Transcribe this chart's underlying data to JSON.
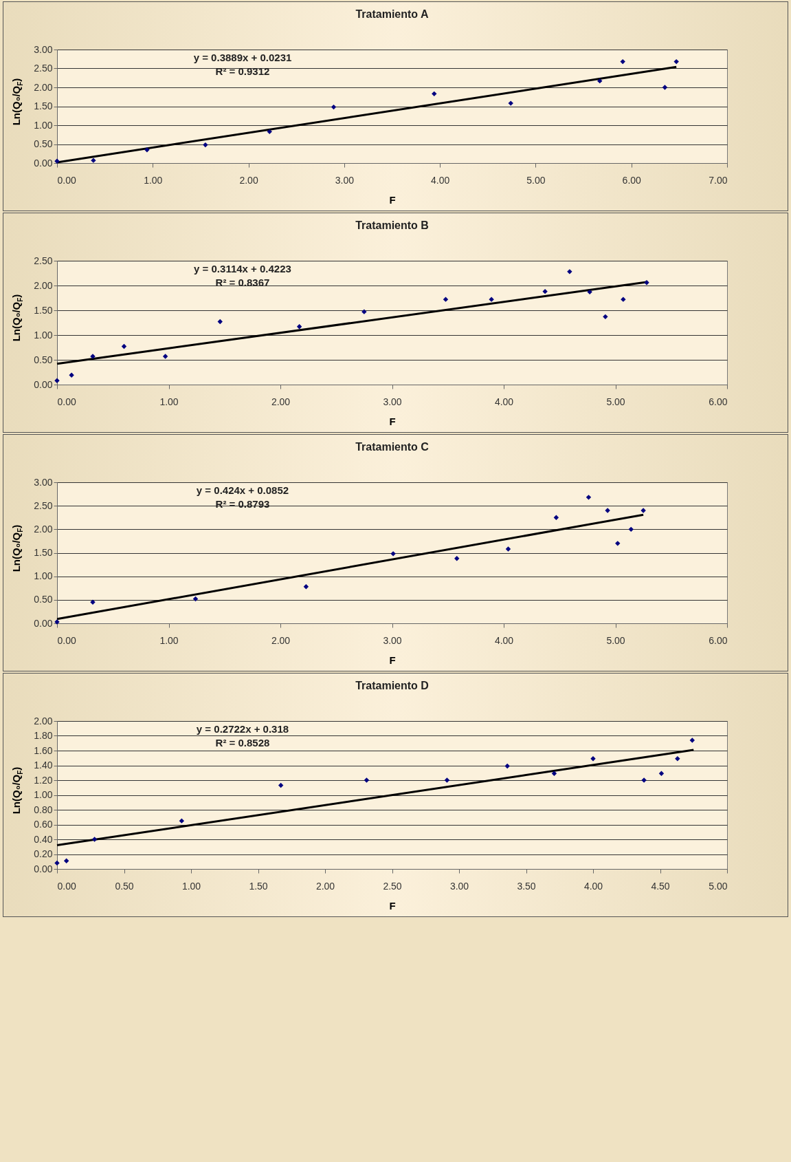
{
  "chart_data": [
    {
      "type": "scatter",
      "title": "Tratamiento A",
      "xlabel": "F",
      "ylabel": "Ln(Q₀/Q$_{F}$)",
      "annotations": [
        "y = 0.3889x  + 0.0231",
        "R² = 0.9312"
      ],
      "marker": "diamond",
      "grid": "y",
      "xlim": [
        0,
        7
      ],
      "xticks": [
        {
          "value": 0,
          "label": "0.00"
        },
        {
          "value": 1,
          "label": "1.00"
        },
        {
          "value": 2,
          "label": "2.00"
        },
        {
          "value": 3,
          "label": "3.00"
        },
        {
          "value": 4,
          "label": "4.00"
        },
        {
          "value": 5,
          "label": "5.00"
        },
        {
          "value": 6,
          "label": "6.00"
        },
        {
          "value": 7,
          "label": "7.00"
        }
      ],
      "ylim": [
        0,
        3
      ],
      "yticks": [
        {
          "value": 0,
          "label": "0.00"
        },
        {
          "value": 0.5,
          "label": "0.50"
        },
        {
          "value": 1,
          "label": "1.00"
        },
        {
          "value": 1.5,
          "label": "1.50"
        },
        {
          "value": 2,
          "label": "2.00"
        },
        {
          "value": 2.5,
          "label": "2.50"
        },
        {
          "value": 3,
          "label": "3.00"
        }
      ],
      "series": [
        {
          "type": "scatter",
          "color": "#000080",
          "x": [
            0,
            0.38,
            0.94,
            1.55,
            2.22,
            2.89,
            3.94,
            4.74,
            5.67,
            5.91,
            6.35,
            6.47
          ],
          "values": [
            0.05,
            0.07,
            0.35,
            0.48,
            0.83,
            1.48,
            1.83,
            1.58,
            2.17,
            2.68,
            2.0,
            2.68
          ]
        },
        {
          "type": "line",
          "color": "#000000",
          "marker": "none",
          "x": [
            0,
            6.47
          ],
          "values": [
            0.02,
            2.54
          ]
        }
      ]
    },
    {
      "type": "scatter",
      "title": "Tratamiento B",
      "xlabel": "F",
      "ylabel": "Ln(Q₀/Q$_{F}$)",
      "annotations": [
        "y = 0.3114x  + 0.4223",
        "R² = 0.8367"
      ],
      "marker": "diamond",
      "grid": "y",
      "xlim": [
        0,
        6
      ],
      "xticks": [
        {
          "value": 0,
          "label": "0.00"
        },
        {
          "value": 1,
          "label": "1.00"
        },
        {
          "value": 2,
          "label": "2.00"
        },
        {
          "value": 3,
          "label": "3.00"
        },
        {
          "value": 4,
          "label": "4.00"
        },
        {
          "value": 5,
          "label": "5.00"
        },
        {
          "value": 6,
          "label": "6.00"
        }
      ],
      "ylim": [
        0,
        2.5
      ],
      "yticks": [
        {
          "value": 0,
          "label": "0.00"
        },
        {
          "value": 0.5,
          "label": "0.50"
        },
        {
          "value": 1,
          "label": "1.00"
        },
        {
          "value": 1.5,
          "label": "1.50"
        },
        {
          "value": 2,
          "label": "2.00"
        },
        {
          "value": 2.5,
          "label": "2.50"
        }
      ],
      "series": [
        {
          "type": "scatter",
          "color": "#000080",
          "x": [
            0,
            0.13,
            0.32,
            0.6,
            0.97,
            1.46,
            2.17,
            2.75,
            3.48,
            3.89,
            4.37,
            4.59,
            4.77,
            4.91,
            5.07,
            5.28
          ],
          "values": [
            0.08,
            0.19,
            0.57,
            0.77,
            0.57,
            1.27,
            1.17,
            1.47,
            1.72,
            1.72,
            1.88,
            2.28,
            1.87,
            1.37,
            1.72,
            2.06
          ]
        },
        {
          "type": "line",
          "color": "#000000",
          "marker": "none",
          "x": [
            0,
            5.28
          ],
          "values": [
            0.42,
            2.07
          ]
        }
      ]
    },
    {
      "type": "scatter",
      "title": "Tratamiento C",
      "xlabel": "F",
      "ylabel": "Ln(Q₀/Q$_{F}$)",
      "annotations": [
        "y = 0.424x  + 0.0852",
        "R² = 0.8793"
      ],
      "marker": "diamond",
      "grid": "y",
      "xlim": [
        0,
        6
      ],
      "xticks": [
        {
          "value": 0,
          "label": "0.00"
        },
        {
          "value": 1,
          "label": "1.00"
        },
        {
          "value": 2,
          "label": "2.00"
        },
        {
          "value": 3,
          "label": "3.00"
        },
        {
          "value": 4,
          "label": "4.00"
        },
        {
          "value": 5,
          "label": "5.00"
        },
        {
          "value": 6,
          "label": "6.00"
        }
      ],
      "ylim": [
        0,
        3
      ],
      "yticks": [
        {
          "value": 0,
          "label": "0.00"
        },
        {
          "value": 0.5,
          "label": "0.50"
        },
        {
          "value": 1,
          "label": "1.00"
        },
        {
          "value": 1.5,
          "label": "1.50"
        },
        {
          "value": 2,
          "label": "2.00"
        },
        {
          "value": 2.5,
          "label": "2.50"
        },
        {
          "value": 3,
          "label": "3.00"
        }
      ],
      "series": [
        {
          "type": "scatter",
          "color": "#000080",
          "x": [
            0,
            0.32,
            1.24,
            2.23,
            3.01,
            3.58,
            4.04,
            4.47,
            4.76,
            4.93,
            5.02,
            5.14,
            5.25
          ],
          "values": [
            0.03,
            0.45,
            0.52,
            0.78,
            1.48,
            1.38,
            1.58,
            2.25,
            2.68,
            2.4,
            1.7,
            2.0,
            2.4
          ]
        },
        {
          "type": "line",
          "color": "#000000",
          "marker": "none",
          "x": [
            0,
            5.25
          ],
          "values": [
            0.09,
            2.31
          ]
        }
      ]
    },
    {
      "type": "scatter",
      "title": "Tratamiento D",
      "xlabel": "F",
      "ylabel": "Ln(Q₀/Q$_{F}$)",
      "annotations": [
        "y = 0.2722x  + 0.318",
        "R² = 0.8528"
      ],
      "marker": "diamond",
      "grid": "y",
      "xlim": [
        0,
        5
      ],
      "xticks": [
        {
          "value": 0,
          "label": "0.00"
        },
        {
          "value": 0.5,
          "label": "0.50"
        },
        {
          "value": 1,
          "label": "1.00"
        },
        {
          "value": 1.5,
          "label": "1.50"
        },
        {
          "value": 2,
          "label": "2.00"
        },
        {
          "value": 2.5,
          "label": "2.50"
        },
        {
          "value": 3,
          "label": "3.00"
        },
        {
          "value": 3.5,
          "label": "3.50"
        },
        {
          "value": 4,
          "label": "4.00"
        },
        {
          "value": 4.5,
          "label": "4.50"
        },
        {
          "value": 5,
          "label": "5.00"
        }
      ],
      "ylim": [
        0,
        2
      ],
      "yticks": [
        {
          "value": 0,
          "label": "0.00"
        },
        {
          "value": 0.2,
          "label": "0.20"
        },
        {
          "value": 0.4,
          "label": "0.40"
        },
        {
          "value": 0.6,
          "label": "0.60"
        },
        {
          "value": 0.8,
          "label": "0.80"
        },
        {
          "value": 1,
          "label": "1.00"
        },
        {
          "value": 1.2,
          "label": "1.20"
        },
        {
          "value": 1.4,
          "label": "1.40"
        },
        {
          "value": 1.6,
          "label": "1.60"
        },
        {
          "value": 1.8,
          "label": "1.80"
        },
        {
          "value": 2,
          "label": "2.00"
        }
      ],
      "series": [
        {
          "type": "scatter",
          "color": "#000080",
          "x": [
            0,
            0.07,
            0.28,
            0.93,
            1.67,
            2.31,
            2.91,
            3.36,
            3.71,
            4.0,
            4.38,
            4.51,
            4.63,
            4.74
          ],
          "values": [
            0.08,
            0.11,
            0.4,
            0.65,
            1.13,
            1.2,
            1.2,
            1.39,
            1.29,
            1.49,
            1.2,
            1.29,
            1.49,
            1.74
          ]
        },
        {
          "type": "line",
          "color": "#000000",
          "marker": "none",
          "x": [
            0,
            4.75
          ],
          "values": [
            0.32,
            1.61
          ]
        }
      ]
    }
  ]
}
